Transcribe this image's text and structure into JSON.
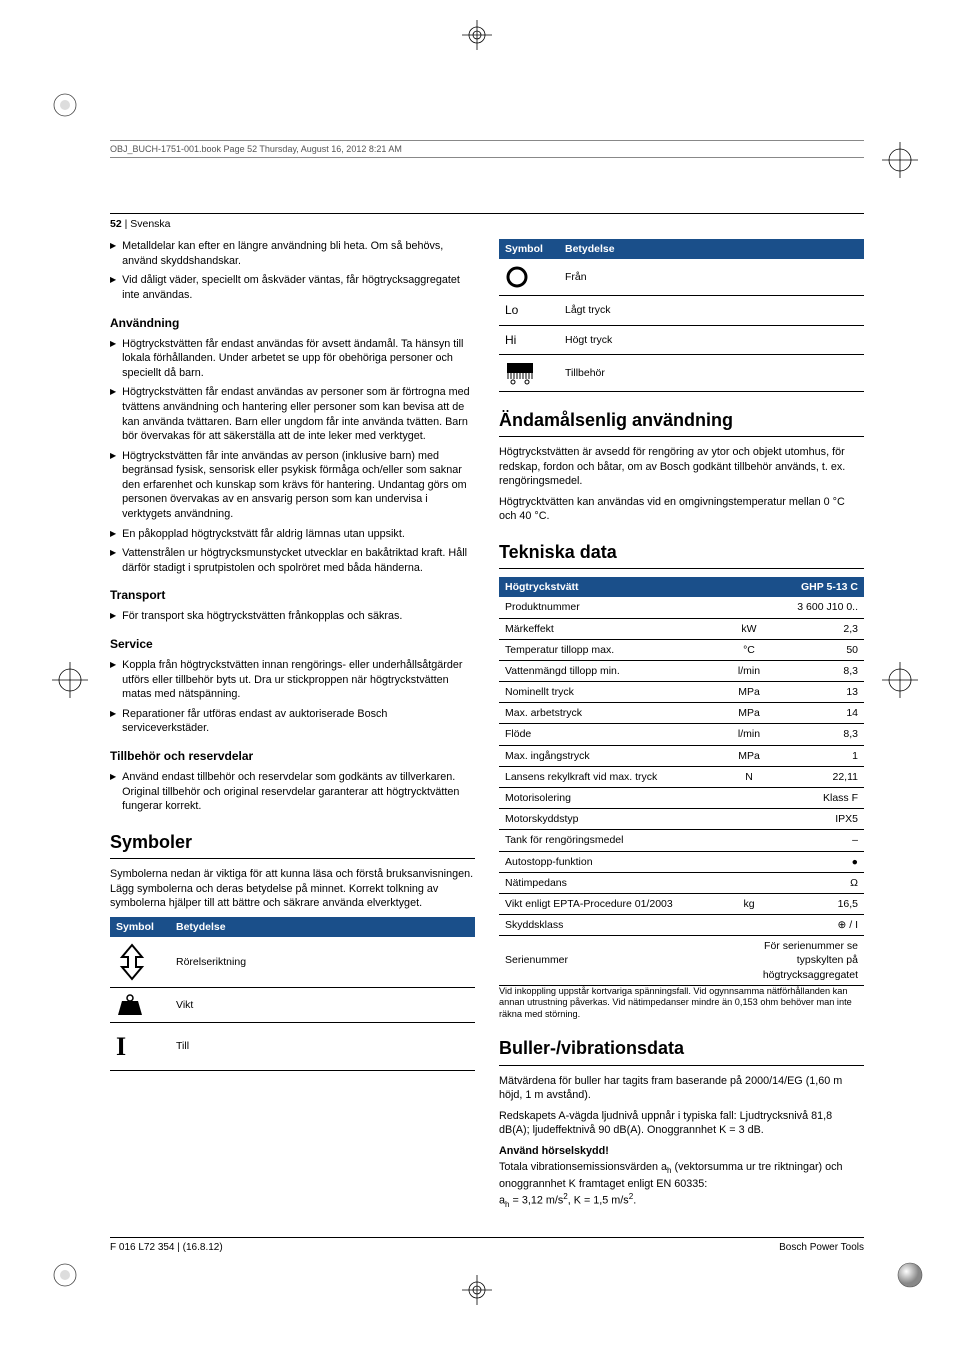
{
  "running_head": "OBJ_BUCH-1751-001.book  Page 52  Thursday, August 16, 2012  8:21 AM",
  "page_header": {
    "num": "52",
    "sep": " | ",
    "lang": "Svenska"
  },
  "left": {
    "intro_bullets": [
      "Metalldelar kan efter en längre användning bli heta. Om så behövs, använd skyddshandskar.",
      "Vid dåligt väder, speciellt om åskväder väntas, får högtrycksaggregatet inte användas."
    ],
    "sections": [
      {
        "title": "Användning",
        "bullets": [
          "Högtryckstvätten får endast användas för avsett ändamål. Ta hänsyn till lokala förhållanden. Under arbetet se upp för obehöriga personer och speciellt då barn.",
          "Högtryckstvätten får endast användas av personer som är förtrogna med tvättens användning och hantering eller personer som kan bevisa att de kan använda tvättaren. Barn eller ungdom får inte använda tvätten. Barn bör övervakas för att säkerställa att de inte leker med verktyget.",
          "Högtryckstvätten får inte användas av person (inklusive barn) med begränsad fysisk, sensorisk eller psykisk förmåga och/eller som saknar den erfarenhet och kunskap som krävs för hantering. Undantag görs om personen övervakas av en ansvarig person som kan undervisa i verktygets användning.",
          "En påkopplad högtryckstvätt får aldrig lämnas utan uppsikt.",
          "Vattenstrålen ur högtrycksmunstycket utvecklar en bakåtriktad kraft. Håll därför stadigt i sprutpistolen och spolröret med båda händerna."
        ]
      },
      {
        "title": "Transport",
        "bullets": [
          "För transport ska högtryckstvätten frånkopplas och säkras."
        ]
      },
      {
        "title": "Service",
        "bullets": [
          "Koppla från högtryckstvätten innan rengörings- eller underhållsåtgärder utförs eller tillbehör byts ut. Dra ur stickproppen när högtryckstvätten matas med nätspänning.",
          "Reparationer får utföras endast av auktoriserade Bosch serviceverkstäder."
        ]
      },
      {
        "title": "Tillbehör och reservdelar",
        "bullets": [
          "Använd endast tillbehör och reservdelar som godkänts av tillverkaren. Original tillbehör och original reservdelar garanterar att högtrycktvätten fungerar korrekt."
        ]
      }
    ],
    "symboler": {
      "title": "Symboler",
      "intro": "Symbolerna nedan är viktiga för att kunna läsa och förstå bruksanvisningen. Lägg symbolerna och deras betydelse på minnet. Korrekt tolkning av symbolerna hjälper till att bättre och säkrare använda elverktyget.",
      "head_symbol": "Symbol",
      "head_meaning": "Betydelse",
      "rows": [
        {
          "icon": "move-arrow",
          "label": "Rörelseriktning"
        },
        {
          "icon": "weight",
          "label": "Vikt"
        },
        {
          "icon": "on-i",
          "label": "Till"
        }
      ]
    }
  },
  "right": {
    "sym_table_cont": {
      "head_symbol": "Symbol",
      "head_meaning": "Betydelse",
      "rows": [
        {
          "icon": "off-o",
          "label": "Från"
        },
        {
          "icon": "text",
          "text": "Lo",
          "label": "Lågt tryck"
        },
        {
          "icon": "text",
          "text": "Hi",
          "label": "Högt tryck"
        },
        {
          "icon": "brush",
          "label": "Tillbehör"
        }
      ]
    },
    "purpose": {
      "title": "Ändamålsenlig användning",
      "paras": [
        "Högtryckstvätten är avsedd för rengöring av ytor och objekt utomhus, för redskap, fordon och båtar, om av Bosch godkänt tillbehör används, t. ex. rengöringsmedel.",
        "Högtrycktvätten kan användas vid en omgivningstemperatur mellan 0 °C och 40 °C."
      ]
    },
    "tech": {
      "title": "Tekniska data",
      "head_name": "Högtryckstvätt",
      "head_model": "GHP 5-13 C",
      "rows": [
        {
          "k": "Produktnummer",
          "u": "",
          "v": "3 600 J10 0.."
        },
        {
          "k": "Märkeffekt",
          "u": "kW",
          "v": "2,3"
        },
        {
          "k": "Temperatur tillopp max.",
          "u": "°C",
          "v": "50"
        },
        {
          "k": "Vattenmängd tillopp min.",
          "u": "l/min",
          "v": "8,3"
        },
        {
          "k": "Nominellt tryck",
          "u": "MPa",
          "v": "13"
        },
        {
          "k": "Max. arbetstryck",
          "u": "MPa",
          "v": "14"
        },
        {
          "k": "Flöde",
          "u": "l/min",
          "v": "8,3"
        },
        {
          "k": "Max. ingångstryck",
          "u": "MPa",
          "v": "1"
        },
        {
          "k": "Lansens rekylkraft vid max. tryck",
          "u": "N",
          "v": "22,11"
        },
        {
          "k": "Motorisolering",
          "u": "",
          "v": "Klass F"
        },
        {
          "k": "Motorskyddstyp",
          "u": "",
          "v": "IPX5"
        },
        {
          "k": "Tank för rengöringsmedel",
          "u": "",
          "v": "–"
        },
        {
          "k": "Autostopp-funktion",
          "u": "",
          "v": "●"
        },
        {
          "k": "Nätimpedans",
          "u": "",
          "v": "Ω"
        },
        {
          "k": "Vikt enligt EPTA-Procedure 01/2003",
          "u": "kg",
          "v": "16,5"
        },
        {
          "k": "Skyddsklass",
          "u": "",
          "v": "⊕ / I"
        },
        {
          "k": "Serienummer",
          "u": "",
          "v": "För serienummer  se typskylten på högtrycksaggregatet",
          "wide": true
        }
      ],
      "footnote": "Vid inkoppling uppstår kortvariga spänningsfall. Vid ogynnsamma nätförhållanden kan annan utrustning påverkas. Vid nätimpedanser mindre än 0,153 ohm behöver man inte räkna med störning."
    },
    "noise": {
      "title": "Buller-/vibrationsdata",
      "p1": "Mätvärdena för buller har tagits fram baserande på 2000/14/EG (1,60 m höjd, 1 m avstånd).",
      "p2": "Redskapets A-vägda ljudnivå uppnår i typiska fall: Ljudtrycksnivå 81,8 dB(A); ljudeffektnivå 90 dB(A). Onoggrannhet K = 3 dB.",
      "warn": "Använd hörselskydd!",
      "p3_pre": "Totala vibrationsemissionsvärden a",
      "p3_mid": " (vektorsumma ur tre riktningar) och onoggrannhet K framtaget enligt EN 60335:",
      "p3_line2_a": "a",
      "p3_line2_b": " = 3,12 m/s",
      "p3_line2_c": ", K = 1,5 m/s",
      "p3_line2_d": "."
    }
  },
  "footer": {
    "left": "F 016 L72 354 | (16.8.12)",
    "right": "Bosch Power Tools"
  }
}
